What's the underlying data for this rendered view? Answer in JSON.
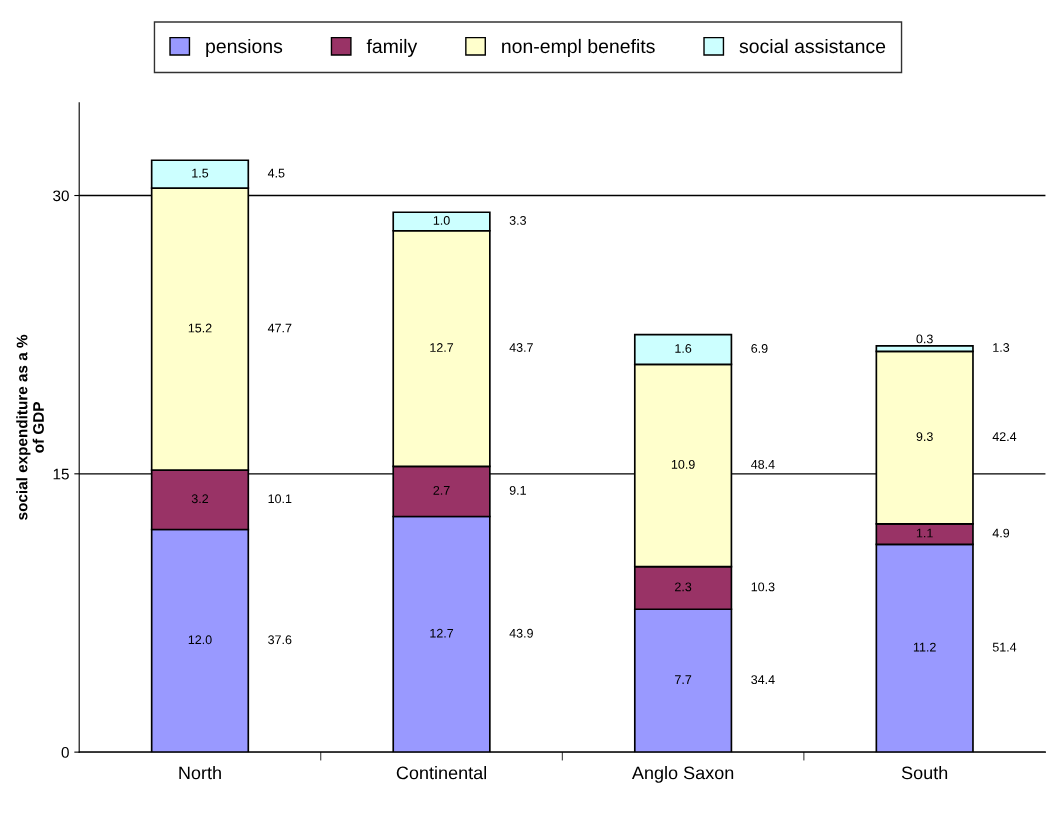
{
  "chart_data": {
    "type": "bar",
    "stacked": true,
    "ylabel": "social expenditure as a %\nof GDP",
    "categories": [
      "North",
      "Continental",
      "Anglo Saxon",
      "South"
    ],
    "series": [
      {
        "name": "pensions",
        "color": "#9999ff",
        "values": [
          12.0,
          12.7,
          7.7,
          11.2
        ],
        "value_labels": [
          "12.0",
          "12.7",
          "7.7",
          "11.2"
        ]
      },
      {
        "name": "family",
        "color": "#993366",
        "values": [
          3.2,
          2.7,
          2.3,
          1.1
        ],
        "value_labels": [
          "3.2",
          "2.7",
          "2.3",
          "1.1"
        ]
      },
      {
        "name": "non-empl benefits",
        "color": "#ffffcc",
        "values": [
          15.2,
          12.7,
          10.9,
          9.3
        ],
        "value_labels": [
          "15.2",
          "12.7",
          "10.9",
          "9.3"
        ]
      },
      {
        "name": "social assistance",
        "color": "#ccffff",
        "values": [
          1.5,
          1.0,
          1.6,
          0.3
        ],
        "value_labels": [
          "1.5",
          "1.0",
          "1.6",
          "0.3"
        ]
      }
    ],
    "ylim": [
      0,
      35
    ],
    "yticks": [
      0,
      15,
      30
    ],
    "grid": "y",
    "legend": "top",
    "annotations": [
      "37.6",
      "10.1",
      "47.7",
      "4.5",
      "43.9",
      "9.1",
      "43.7",
      "3.3",
      "34.4",
      "10.3",
      "48.4",
      "6.9",
      "51.4",
      "4.9",
      "42.4",
      "1.3"
    ]
  }
}
